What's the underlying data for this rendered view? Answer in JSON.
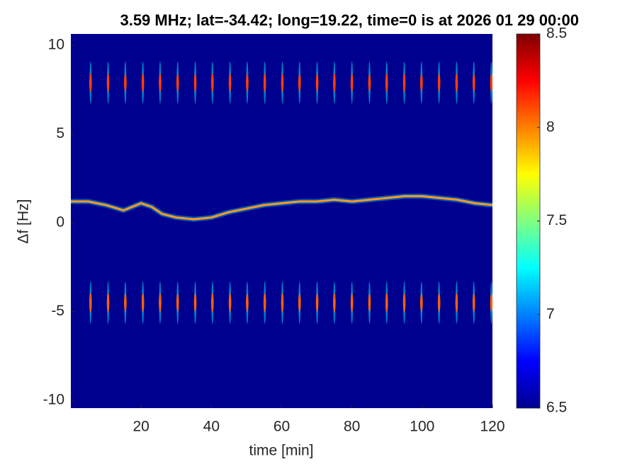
{
  "chart_data": {
    "type": "spectrogram",
    "title": "3.59 MHz;  lat=-34.42; long=19.22, time=0 is at 2026 01 29 00:00",
    "x_label": "time [min]",
    "y_label": "Δf [Hz]",
    "xlim": [
      0,
      120
    ],
    "xticks": [
      20,
      40,
      60,
      80,
      100,
      120
    ],
    "ylim": [
      -10.44,
      10.64
    ],
    "yticks": [
      -10,
      -5,
      0,
      5,
      10
    ],
    "background_color": "#00008f",
    "clim": [
      6.5,
      8.5
    ],
    "cticks": [
      6.5,
      7,
      7.5,
      8,
      8.5
    ],
    "colormap": [
      "#00008f",
      "#0000ff",
      "#0080ff",
      "#00ffff",
      "#80ff80",
      "#ffff00",
      "#ff8000",
      "#ff0000",
      "#800000"
    ],
    "series": [
      {
        "style": "line",
        "color": "#ff9a20",
        "x": [
          0,
          5,
          10,
          15,
          20,
          23,
          26,
          30,
          35,
          40,
          45,
          50,
          55,
          60,
          65,
          70,
          75,
          80,
          85,
          90,
          95,
          100,
          105,
          110,
          115,
          120
        ],
        "values": [
          1.2,
          1.2,
          1.0,
          0.7,
          1.1,
          0.9,
          0.5,
          0.3,
          0.2,
          0.3,
          0.6,
          0.8,
          1.0,
          1.1,
          1.2,
          1.2,
          1.3,
          1.2,
          1.3,
          1.4,
          1.5,
          1.5,
          1.4,
          1.3,
          1.1,
          1.0
        ]
      },
      {
        "style": "spike",
        "color": "#ff4000",
        "x": [
          5.6,
          10.6,
          15.5,
          20.5,
          25.4,
          30.4,
          35.4,
          40.3,
          45.3,
          50.2,
          55.2,
          60.2,
          65.1,
          70.1,
          75.0,
          80.0,
          85.0,
          89.9,
          94.9,
          99.8,
          104.8,
          109.8,
          114.7,
          119.7
        ],
        "values": [
          7.9,
          7.9,
          7.9,
          7.9,
          7.9,
          7.9,
          7.9,
          7.9,
          7.9,
          7.9,
          7.9,
          7.9,
          7.9,
          7.9,
          7.9,
          7.9,
          7.9,
          7.9,
          7.9,
          7.9,
          7.9,
          7.9,
          7.9,
          7.9
        ]
      },
      {
        "style": "spike",
        "color": "#ff6000",
        "x": [
          5.6,
          10.6,
          15.5,
          20.5,
          25.4,
          30.4,
          35.4,
          40.3,
          45.3,
          50.2,
          55.2,
          60.2,
          65.1,
          70.1,
          75.0,
          80.0,
          85.0,
          89.9,
          94.9,
          99.8,
          104.8,
          109.8,
          114.7,
          119.7
        ],
        "values": [
          -4.5,
          -4.5,
          -4.5,
          -4.5,
          -4.5,
          -4.5,
          -4.5,
          -4.5,
          -4.5,
          -4.5,
          -4.5,
          -4.5,
          -4.5,
          -4.5,
          -4.5,
          -4.5,
          -4.5,
          -4.5,
          -4.5,
          -4.5,
          -4.5,
          -4.5,
          -4.5,
          -4.5
        ]
      }
    ]
  }
}
